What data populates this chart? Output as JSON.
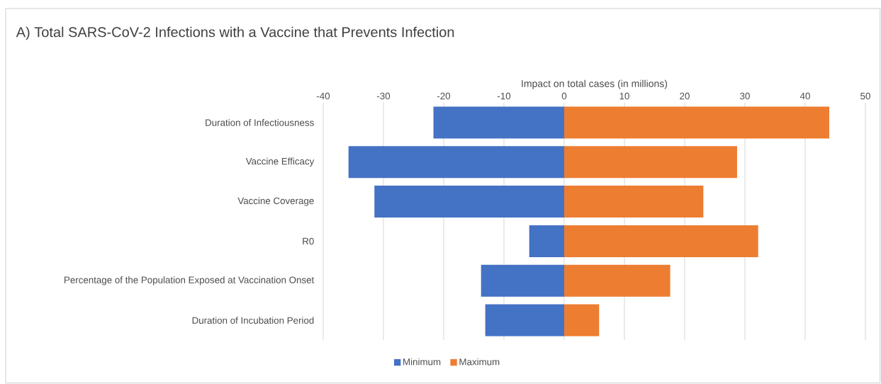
{
  "chart_data": {
    "type": "bar",
    "orientation": "horizontal",
    "title": "A) Total SARS-CoV-2 Infections with a Vaccine that Prevents Infection",
    "xlabel": "Impact on total cases (in millions)",
    "categories": [
      "Duration of Infectiousness",
      "Vaccine Efficacy",
      "Vaccine Coverage",
      "R0",
      "Percentage of the Population Exposed at Vaccination Onset",
      "Duration of Incubation Period"
    ],
    "series": [
      {
        "name": "Minimum",
        "color": "#4472c4",
        "values": [
          -21.7,
          -35.8,
          -31.5,
          -5.8,
          -13.8,
          -13.1
        ]
      },
      {
        "name": "Maximum",
        "color": "#ed7d31",
        "values": [
          44.0,
          28.7,
          23.1,
          32.2,
          17.6,
          5.8
        ]
      }
    ],
    "xlim": [
      -40,
      50
    ],
    "xticks": [
      -40,
      -30,
      -20,
      -10,
      0,
      10,
      20,
      30,
      40,
      50
    ],
    "stacked": true,
    "grid": "x",
    "legend": "bottom"
  }
}
